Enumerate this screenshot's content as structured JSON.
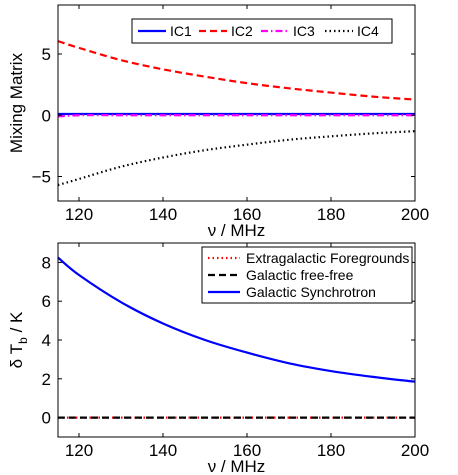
{
  "chart_data": [
    {
      "type": "line",
      "xlabel": "ν / MHz",
      "ylabel": "Mixing Matrix",
      "xlim": [
        115,
        200
      ],
      "ylim": [
        -7,
        9
      ],
      "xticks": [
        120,
        140,
        160,
        180,
        200
      ],
      "yticks": [
        -5,
        0,
        5
      ],
      "grid": false,
      "legend_position": "top-right",
      "legend_layout": "horizontal",
      "x": [
        115,
        120,
        130,
        140,
        150,
        160,
        170,
        180,
        190,
        200
      ],
      "series": [
        {
          "name": "IC1",
          "color": "#0000ff",
          "style": "solid",
          "values": [
            0.1,
            0.1,
            0.1,
            0.1,
            0.1,
            0.1,
            0.1,
            0.1,
            0.1,
            0.1
          ]
        },
        {
          "name": "IC2",
          "color": "#ff0000",
          "style": "dashed",
          "values": [
            6.05,
            5.5,
            4.5,
            3.75,
            3.15,
            2.62,
            2.2,
            1.85,
            1.52,
            1.28
          ]
        },
        {
          "name": "IC3",
          "color": "#ff00ff",
          "style": "dashdot",
          "values": [
            -0.1,
            0.0,
            0.0,
            0.0,
            0.0,
            0.0,
            0.0,
            0.0,
            0.0,
            0.0
          ]
        },
        {
          "name": "IC4",
          "color": "#000000",
          "style": "dotted",
          "values": [
            -5.7,
            -5.2,
            -4.2,
            -3.45,
            -2.85,
            -2.4,
            -2.0,
            -1.72,
            -1.48,
            -1.3
          ]
        }
      ]
    },
    {
      "type": "line",
      "xlabel": "ν / MHz",
      "ylabel": "δ T_b / K",
      "ylabel_main": "δ T",
      "ylabel_sub": "b",
      "ylabel_tail": " / K",
      "xlim": [
        115,
        200
      ],
      "ylim": [
        -1,
        9
      ],
      "xticks": [
        120,
        140,
        160,
        180,
        200
      ],
      "yticks": [
        0,
        2,
        4,
        6,
        8
      ],
      "grid": false,
      "legend_position": "top-right",
      "legend_layout": "vertical",
      "x": [
        115,
        120,
        130,
        140,
        150,
        160,
        170,
        180,
        190,
        200
      ],
      "series": [
        {
          "name": "Extragalactic Foregrounds",
          "color": "#ff0000",
          "style": "dotted",
          "values": [
            0,
            0,
            0,
            0,
            0,
            0,
            0,
            0,
            0,
            0
          ]
        },
        {
          "name": "Galactic free-free",
          "color": "#000000",
          "style": "dashed",
          "values": [
            0,
            0,
            0,
            0,
            0,
            0,
            0,
            0,
            0,
            0
          ]
        },
        {
          "name": "Galactic Synchrotron",
          "color": "#0000ff",
          "style": "solid",
          "values": [
            8.25,
            7.35,
            5.95,
            4.85,
            4.0,
            3.35,
            2.8,
            2.4,
            2.1,
            1.85
          ]
        }
      ]
    }
  ]
}
